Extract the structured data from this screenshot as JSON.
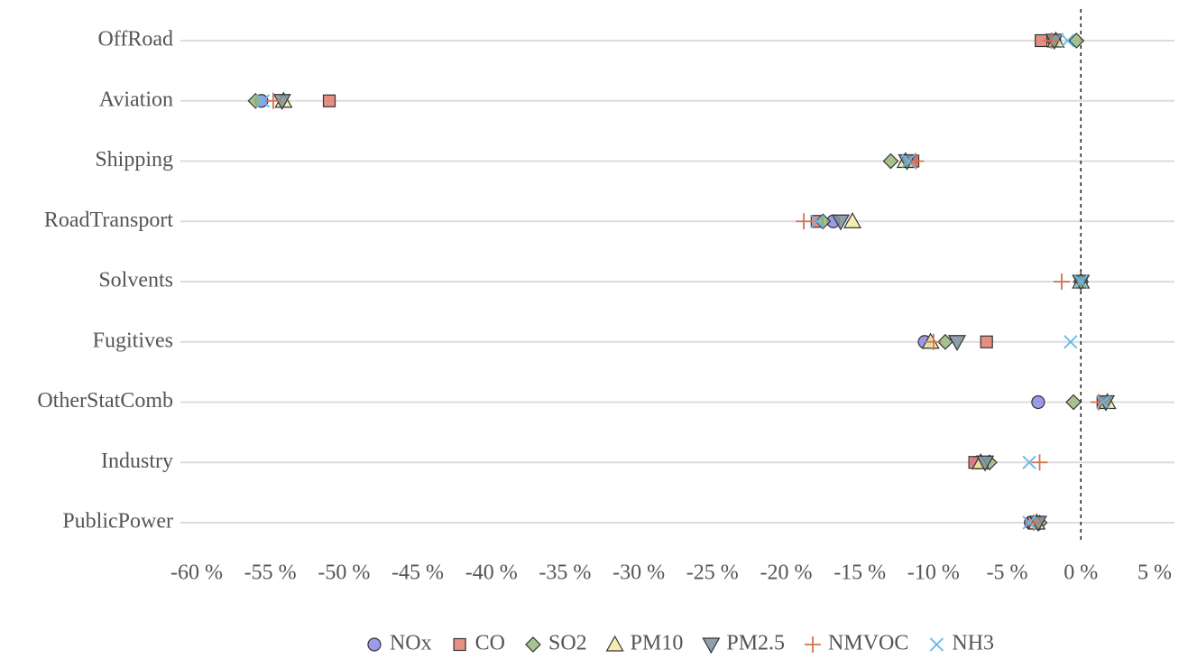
{
  "chart_data": {
    "type": "dot",
    "categories": [
      "OffRoad",
      "Aviation",
      "Shipping",
      "RoadTransport",
      "Solvents",
      "Fugitives",
      "OtherStatComb",
      "Industry",
      "PublicPower"
    ],
    "series": [
      {
        "name": "NOx",
        "color": "#8a8ae6",
        "marker": "circle",
        "values": [
          -1.8,
          -55.6,
          -11.5,
          -16.8,
          0,
          -10.6,
          -2.9,
          -7.0,
          -3.4
        ]
      },
      {
        "name": "CO",
        "color": "#e07b70",
        "marker": "square",
        "values": [
          -2.7,
          -51.0,
          -11.4,
          -17.9,
          0,
          -6.4,
          1.5,
          -7.2,
          -3.2
        ]
      },
      {
        "name": "SO2",
        "color": "#98b87c",
        "marker": "diamond",
        "values": [
          -0.3,
          -56.0,
          -12.9,
          -17.5,
          0,
          -9.2,
          -0.5,
          -6.2,
          -2.8
        ]
      },
      {
        "name": "PM10",
        "color": "#f2eca2",
        "marker": "triangle-up",
        "values": [
          -1.7,
          -54.1,
          -11.9,
          -15.5,
          0,
          -10.2,
          1.8,
          -6.8,
          -3.0
        ]
      },
      {
        "name": "PM2.5",
        "color": "#7b8f9e",
        "marker": "triangle-down",
        "values": [
          -1.8,
          -54.2,
          -11.8,
          -16.3,
          0,
          -8.4,
          1.7,
          -6.5,
          -2.9
        ]
      },
      {
        "name": "NMVOC",
        "color": "#d2734c",
        "marker": "plus",
        "values": [
          -2.0,
          -54.8,
          -11.2,
          -18.8,
          -1.3,
          -10.0,
          1.2,
          -2.8,
          -3.2
        ]
      },
      {
        "name": "NH3",
        "color": "#62b9e8",
        "marker": "cross",
        "values": [
          -0.9,
          -55.5,
          -11.7,
          -17.9,
          0,
          -0.7,
          1.5,
          -3.5,
          -3.5
        ]
      }
    ],
    "xlim": [
      -61.1,
      6.35
    ],
    "xticks": [
      {
        "value": -60,
        "label": "-60 %"
      },
      {
        "value": -55,
        "label": "-55 %"
      },
      {
        "value": -50,
        "label": "-50 %"
      },
      {
        "value": -45,
        "label": "-45 %"
      },
      {
        "value": -40,
        "label": "-40 %"
      },
      {
        "value": -35,
        "label": "-35 %"
      },
      {
        "value": -30,
        "label": "-30 %"
      },
      {
        "value": -25,
        "label": "-25 %"
      },
      {
        "value": -20,
        "label": "-20 %"
      },
      {
        "value": -15,
        "label": "-15 %"
      },
      {
        "value": -10,
        "label": "-10 %"
      },
      {
        "value": -5,
        "label": "-5 %"
      },
      {
        "value": 0,
        "label": "0 %"
      },
      {
        "value": 5,
        "label": "5 %"
      }
    ],
    "reference_line": 0,
    "grid": true,
    "legend": "bottom"
  }
}
